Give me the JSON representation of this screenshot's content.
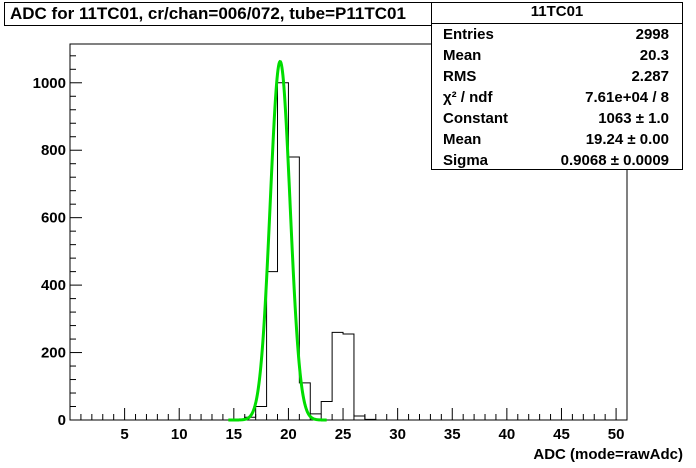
{
  "title": "ADC for 11TC01,  cr/chan=006/072,  tube=P11TC01",
  "stats": {
    "name": "11TC01",
    "rows": [
      {
        "label": "Entries",
        "value": "2998"
      },
      {
        "label": "Mean",
        "value": "20.3"
      },
      {
        "label": "RMS",
        "value": "2.287"
      },
      {
        "label": "χ² / ndf",
        "value": "7.61e+04 / 8"
      },
      {
        "label": "Constant",
        "value": "1063 ± 1.0"
      },
      {
        "label": "Mean",
        "value": "19.24 ± 0.00"
      },
      {
        "label": "Sigma",
        "value": "0.9068 ± 0.0009"
      }
    ]
  },
  "chart_data": {
    "type": "histogram",
    "xlabel": "ADC (mode=rawAdc)",
    "ylabel": "",
    "xlim": [
      0,
      51
    ],
    "ylim": [
      0,
      1115
    ],
    "xticks": [
      5,
      10,
      15,
      20,
      25,
      30,
      35,
      40,
      45,
      50
    ],
    "yticks": [
      0,
      200,
      400,
      600,
      800,
      1000
    ],
    "bin_width": 1,
    "bins": [
      {
        "x0": 15,
        "value": 1
      },
      {
        "x0": 16,
        "value": 8
      },
      {
        "x0": 17,
        "value": 40
      },
      {
        "x0": 18,
        "value": 440
      },
      {
        "x0": 19,
        "value": 1000
      },
      {
        "x0": 20,
        "value": 780
      },
      {
        "x0": 21,
        "value": 110
      },
      {
        "x0": 22,
        "value": 18
      },
      {
        "x0": 23,
        "value": 55
      },
      {
        "x0": 24,
        "value": 260
      },
      {
        "x0": 25,
        "value": 255
      },
      {
        "x0": 26,
        "value": 12
      },
      {
        "x0": 27,
        "value": 2
      }
    ],
    "fit": {
      "function": "gaus",
      "constant": 1063,
      "mean": 19.24,
      "sigma": 0.9068,
      "range": [
        14.5,
        23.5
      ],
      "color": "#00dd00"
    },
    "histogram_color": "#000000",
    "grid": false
  }
}
